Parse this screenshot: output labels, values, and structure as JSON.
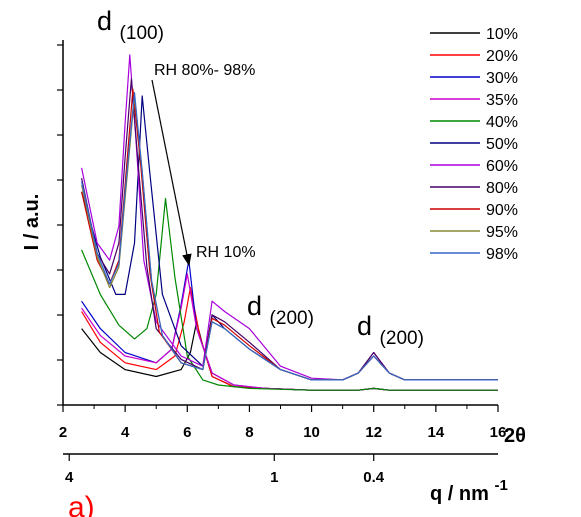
{
  "chart_data": {
    "type": "line",
    "title": "",
    "panel_label": "a)",
    "panel_label_color": "#ff0000",
    "ylabel": "I / a.u.",
    "xlabel_2theta": "2θ",
    "xlabel_q_main": "q / nm",
    "xlabel_q_sup": "-1",
    "xlim": [
      2,
      16
    ],
    "x_ticks": [
      "2",
      "4",
      "6",
      "8",
      "10",
      "12",
      "14",
      "16"
    ],
    "q_ticks": [
      {
        "label": "4",
        "two_theta": 2.2
      },
      {
        "label": "1",
        "two_theta": 8.8
      },
      {
        "label": "0.4",
        "two_theta": 12.0
      }
    ],
    "y_scale": "arbitrary",
    "legend_placement": "top-right",
    "annotations": {
      "peak100": {
        "main": "d",
        "sub": "(100)"
      },
      "peak200a": {
        "main": "d",
        "sub": "(200)"
      },
      "peak200b": {
        "main": "d",
        "sub": "(200)"
      },
      "rh_high": "RH 80%- 98%",
      "rh_low": "RH 10%"
    },
    "series": [
      {
        "name": "10%",
        "color": "#000000",
        "x": [
          2.6,
          3.2,
          4.0,
          5.0,
          5.8,
          6.1,
          6.3,
          6.5,
          6.8,
          7.5,
          8.5,
          10,
          11.5,
          12,
          12.5,
          14,
          16
        ],
        "y": [
          0.2,
          0.13,
          0.08,
          0.06,
          0.08,
          0.13,
          0.22,
          0.15,
          0.06,
          0.03,
          0.025,
          0.02,
          0.02,
          0.025,
          0.02,
          0.02,
          0.02
        ]
      },
      {
        "name": "20%",
        "color": "#ff0000",
        "x": [
          2.6,
          3.2,
          4.0,
          5.0,
          5.6,
          5.9,
          6.1,
          6.4,
          6.8,
          7.5,
          8.5,
          10,
          11.5,
          12,
          12.5,
          14,
          16
        ],
        "y": [
          0.25,
          0.16,
          0.1,
          0.08,
          0.12,
          0.22,
          0.32,
          0.18,
          0.06,
          0.03,
          0.025,
          0.02,
          0.02,
          0.025,
          0.02,
          0.02,
          0.02
        ]
      },
      {
        "name": "30%",
        "color": "#0000cc",
        "x": [
          2.6,
          3.2,
          4.0,
          5.0,
          5.5,
          5.8,
          6.05,
          6.3,
          6.8,
          7.5,
          8.5,
          10,
          11.5,
          12,
          12.5,
          14,
          16
        ],
        "y": [
          0.28,
          0.2,
          0.13,
          0.1,
          0.14,
          0.27,
          0.4,
          0.2,
          0.07,
          0.035,
          0.025,
          0.02,
          0.02,
          0.025,
          0.02,
          0.02,
          0.02
        ]
      },
      {
        "name": "35%",
        "color": "#cc00cc",
        "x": [
          2.6,
          3.2,
          4.0,
          5.0,
          5.5,
          5.8,
          6.0,
          6.3,
          6.8,
          7.5,
          8.5,
          10,
          11.5,
          12,
          12.5,
          14,
          16
        ],
        "y": [
          0.26,
          0.18,
          0.12,
          0.1,
          0.14,
          0.26,
          0.36,
          0.2,
          0.07,
          0.035,
          0.025,
          0.02,
          0.02,
          0.025,
          0.02,
          0.02,
          0.02
        ]
      },
      {
        "name": "40%",
        "color": "#008800",
        "x": [
          2.6,
          3.2,
          3.8,
          4.3,
          4.7,
          5.0,
          5.3,
          5.6,
          6.0,
          6.5,
          7.0,
          8.0,
          10,
          11.5,
          12,
          12.5,
          14,
          16
        ],
        "y": [
          0.43,
          0.3,
          0.21,
          0.17,
          0.2,
          0.3,
          0.58,
          0.35,
          0.12,
          0.05,
          0.035,
          0.025,
          0.02,
          0.02,
          0.025,
          0.02,
          0.02,
          0.02
        ]
      },
      {
        "name": "50%",
        "color": "#000080",
        "x": [
          2.6,
          3.2,
          3.7,
          4.0,
          4.3,
          4.55,
          4.8,
          5.2,
          5.8,
          6.5,
          6.8,
          7.2,
          8.0,
          9.0,
          10,
          11.0,
          11.5,
          12,
          12.5,
          13.0,
          14,
          15,
          16
        ],
        "y": [
          0.6,
          0.41,
          0.3,
          0.3,
          0.45,
          0.88,
          0.65,
          0.3,
          0.15,
          0.09,
          0.24,
          0.2,
          0.14,
          0.08,
          0.05,
          0.05,
          0.07,
          0.12,
          0.07,
          0.05,
          0.05,
          0.05,
          0.05
        ]
      },
      {
        "name": "60%",
        "color": "#aa00dd",
        "x": [
          2.6,
          3.1,
          3.5,
          3.8,
          4.0,
          4.15,
          4.35,
          4.6,
          5.0,
          5.8,
          6.5,
          6.8,
          7.2,
          8.0,
          9.0,
          10,
          11.0,
          11.5,
          12,
          12.5,
          13.0,
          14,
          15,
          16
        ],
        "y": [
          0.67,
          0.45,
          0.4,
          0.5,
          0.8,
          1.0,
          0.75,
          0.4,
          0.22,
          0.12,
          0.09,
          0.28,
          0.25,
          0.2,
          0.09,
          0.055,
          0.05,
          0.07,
          0.13,
          0.07,
          0.05,
          0.05,
          0.05,
          0.05
        ]
      },
      {
        "name": "80%",
        "color": "#440066",
        "x": [
          2.6,
          3.1,
          3.5,
          3.8,
          4.0,
          4.2,
          4.4,
          4.7,
          5.0,
          5.8,
          6.5,
          6.8,
          7.2,
          8.0,
          9.0,
          10,
          11.0,
          11.5,
          12,
          12.5,
          13.0,
          14,
          15,
          16
        ],
        "y": [
          0.64,
          0.42,
          0.36,
          0.45,
          0.7,
          0.93,
          0.7,
          0.38,
          0.2,
          0.11,
          0.08,
          0.24,
          0.22,
          0.16,
          0.08,
          0.05,
          0.05,
          0.07,
          0.13,
          0.07,
          0.05,
          0.05,
          0.05,
          0.05
        ]
      },
      {
        "name": "90%",
        "color": "#cc0000",
        "x": [
          2.6,
          3.1,
          3.5,
          3.8,
          4.0,
          4.25,
          4.5,
          4.8,
          5.1,
          5.8,
          6.5,
          6.8,
          7.2,
          8.0,
          9.0,
          10,
          11.0,
          11.5,
          12,
          12.5,
          13.0,
          14,
          15,
          16
        ],
        "y": [
          0.6,
          0.4,
          0.33,
          0.4,
          0.62,
          0.9,
          0.68,
          0.36,
          0.19,
          0.1,
          0.08,
          0.23,
          0.21,
          0.15,
          0.08,
          0.05,
          0.05,
          0.07,
          0.12,
          0.07,
          0.05,
          0.05,
          0.05,
          0.05
        ]
      },
      {
        "name": "95%",
        "color": "#888833",
        "x": [
          2.6,
          3.1,
          3.5,
          3.8,
          4.0,
          4.3,
          4.55,
          4.85,
          5.2,
          5.8,
          6.5,
          6.8,
          7.2,
          8.0,
          9.0,
          10,
          11.0,
          11.5,
          12,
          12.5,
          13.0,
          14,
          15,
          16
        ],
        "y": [
          0.62,
          0.41,
          0.32,
          0.38,
          0.58,
          0.88,
          0.66,
          0.34,
          0.18,
          0.1,
          0.08,
          0.22,
          0.2,
          0.14,
          0.08,
          0.05,
          0.05,
          0.07,
          0.12,
          0.07,
          0.05,
          0.05,
          0.05,
          0.05
        ]
      },
      {
        "name": "98%",
        "color": "#3366cc",
        "x": [
          2.6,
          3.1,
          3.5,
          3.8,
          4.0,
          4.3,
          4.55,
          4.85,
          5.2,
          5.8,
          6.5,
          6.8,
          7.2,
          8.0,
          9.0,
          10,
          11.0,
          11.5,
          12,
          12.5,
          13.0,
          14,
          15,
          16
        ],
        "y": [
          0.63,
          0.42,
          0.33,
          0.39,
          0.6,
          0.89,
          0.66,
          0.34,
          0.18,
          0.1,
          0.08,
          0.22,
          0.2,
          0.14,
          0.08,
          0.05,
          0.05,
          0.07,
          0.12,
          0.07,
          0.05,
          0.05,
          0.05,
          0.05
        ]
      }
    ]
  }
}
